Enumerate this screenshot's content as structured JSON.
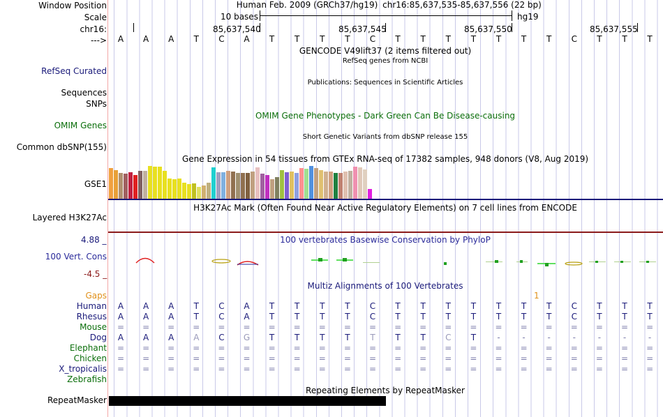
{
  "header": {
    "window_position_label": "Window Position",
    "assembly_text": "Human Feb. 2009 (GRCh37/hg19)",
    "coordinates_text": "chr16:85,637,535-85,637,556 (22 bp)",
    "scale_label": "Scale",
    "scale_bar_text": "10 bases",
    "scale_db": "hg19",
    "chrom_label": "chr16:",
    "strand_label": "--->",
    "position_ticks": [
      "85,637,540",
      "85,637,545",
      "85,637,550",
      "85,637,555"
    ]
  },
  "sequence": [
    "A",
    "A",
    "A",
    "T",
    "C",
    "A",
    "T",
    "T",
    "T",
    "T",
    "C",
    "T",
    "T",
    "T",
    "T",
    "T",
    "T",
    "T",
    "C",
    "T",
    "T",
    "T"
  ],
  "tracks": {
    "gencode": {
      "title": "GENCODE V49lift37 (2 items filtered out)"
    },
    "refseq": {
      "label": "RefSeq Curated",
      "title": "RefSeq genes from NCBI",
      "color": "#1a1a7a"
    },
    "publications": {
      "label": "Sequences",
      "title": "Publications: Sequences in Scientific Articles"
    },
    "snps": {
      "label": "SNPs"
    },
    "omim": {
      "label": "OMIM Genes",
      "title": "OMIM Gene Phenotypes - Dark Green Can Be Disease-causing",
      "color": "#0b6e0b"
    },
    "dbsnp": {
      "label": "Common dbSNP(155)",
      "title": "Short Genetic Variants from dbSNP release 155"
    },
    "gtex": {
      "label": "GSE1",
      "title": "Gene Expression in 54 tissues from GTEx RNA-seq of 17382 samples, 948 donors (V8, Aug 2019)",
      "values": [
        44,
        41,
        37,
        36,
        38,
        34,
        40,
        40,
        47,
        46,
        46,
        40,
        29,
        28,
        29,
        23,
        21,
        22,
        17,
        19,
        23,
        45,
        38,
        38,
        40,
        39,
        37,
        37,
        37,
        39,
        45,
        36,
        34,
        28,
        31,
        41,
        38,
        39,
        37,
        44,
        43,
        47,
        44,
        41,
        39,
        39,
        37,
        37,
        39,
        40,
        46,
        45,
        42,
        14
      ],
      "colors": [
        "#f0a040",
        "#e8a038",
        "#b09070",
        "#a06060",
        "#c02040",
        "#e02020",
        "#806060",
        "#c0b0a0",
        "#e8e020",
        "#e8e020",
        "#e8e020",
        "#e8e020",
        "#e8e020",
        "#e8e020",
        "#e8e020",
        "#e8e020",
        "#e8e020",
        "#c0c020",
        "#e0e060",
        "#d0b070",
        "#c0b080",
        "#20d0d0",
        "#a0a0c0",
        "#80b0e0",
        "#d0a080",
        "#907050",
        "#a09070",
        "#907050",
        "#806040",
        "#c0a080",
        "#e8c0c0",
        "#a060a0",
        "#c030c0",
        "#c0a080",
        "#808060",
        "#a0c040",
        "#8060d0",
        "#e0c060",
        "#90a0e0",
        "#ff9090",
        "#a0e090",
        "#5090e0",
        "#c0a080",
        "#e0c070",
        "#d0b090",
        "#d0a080",
        "#208040",
        "#c08070",
        "#e0c0b0",
        "#c0b0a0",
        "#f090b0",
        "#e0c8b8",
        "#e0d0c0",
        "#e020e0"
      ]
    },
    "layered_h3k27ac": {
      "label": "Layered H3K27Ac",
      "title": "H3K27Ac Mark (Often Found Near Active Regulatory Elements) on 7 cell lines from ENCODE"
    },
    "conservation": {
      "label": "100 Vert. Cons",
      "title": "100 vertebrates Basewise Conservation by PhyloP",
      "ymax": "4.88 _",
      "ymin": "-4.5 _",
      "color": "#2a2a9a"
    },
    "multiz": {
      "title": "Multiz Alignments of 100 Vertebrates",
      "gaps_label": "Gaps",
      "gaps_mark": "1",
      "species": [
        {
          "name": "Human",
          "color": "#1a1a7a",
          "bases": [
            "A",
            "A",
            "A",
            "T",
            "C",
            "A",
            "T",
            "T",
            "T",
            "T",
            "C",
            "T",
            "T",
            "T",
            "T",
            "T",
            "T",
            "T",
            "C",
            "T",
            "T",
            "T"
          ]
        },
        {
          "name": "Rhesus",
          "color": "#1a1a7a",
          "bases": [
            "A",
            "A",
            "A",
            "T",
            "C",
            "A",
            "T",
            "T",
            "T",
            "T",
            "C",
            "T",
            "T",
            "T",
            "T",
            "T",
            "T",
            "T",
            "C",
            "T",
            "T",
            "T"
          ]
        },
        {
          "name": "Mouse",
          "color": "#0b6e0b",
          "bases": [
            "=",
            "=",
            "=",
            "=",
            "=",
            "=",
            "=",
            "=",
            "=",
            "=",
            "=",
            "=",
            "=",
            "=",
            "=",
            "=",
            "=",
            "=",
            "=",
            "=",
            "=",
            "="
          ]
        },
        {
          "name": "Dog",
          "color": "#1a1a7a",
          "bases": [
            "A",
            "A",
            "A",
            "A",
            "C",
            "G",
            "T",
            "T",
            "T",
            "T",
            "T",
            "T",
            "T",
            "C",
            "T",
            "-",
            "-",
            "-",
            "-",
            "-",
            "-",
            "-"
          ]
        },
        {
          "name": "Elephant",
          "color": "#0b6e0b",
          "bases": [
            "=",
            "=",
            "=",
            "=",
            "=",
            "=",
            "=",
            "=",
            "=",
            "=",
            "=",
            "=",
            "=",
            "=",
            "=",
            "=",
            "=",
            "=",
            "=",
            "=",
            "=",
            "="
          ]
        },
        {
          "name": "Chicken",
          "color": "#0b6e0b",
          "bases": [
            "=",
            "=",
            "=",
            "=",
            "=",
            "=",
            "=",
            "=",
            "=",
            "=",
            "=",
            "=",
            "=",
            "=",
            "=",
            "=",
            "=",
            "=",
            "=",
            "=",
            "=",
            "="
          ]
        },
        {
          "name": "X_tropicalis",
          "color": "#1a1a7a",
          "bases": [
            "=",
            "=",
            "=",
            "=",
            "=",
            "=",
            "=",
            "=",
            "=",
            "=",
            "=",
            "=",
            "=",
            "=",
            "=",
            "=",
            "=",
            "=",
            "=",
            "=",
            "=",
            "="
          ]
        },
        {
          "name": "Zebrafish",
          "color": "#0b6e0b",
          "bases": []
        }
      ]
    },
    "repeatmasker": {
      "label": "RepeatMasker",
      "title": "Repeating Elements by RepeatMasker"
    }
  }
}
